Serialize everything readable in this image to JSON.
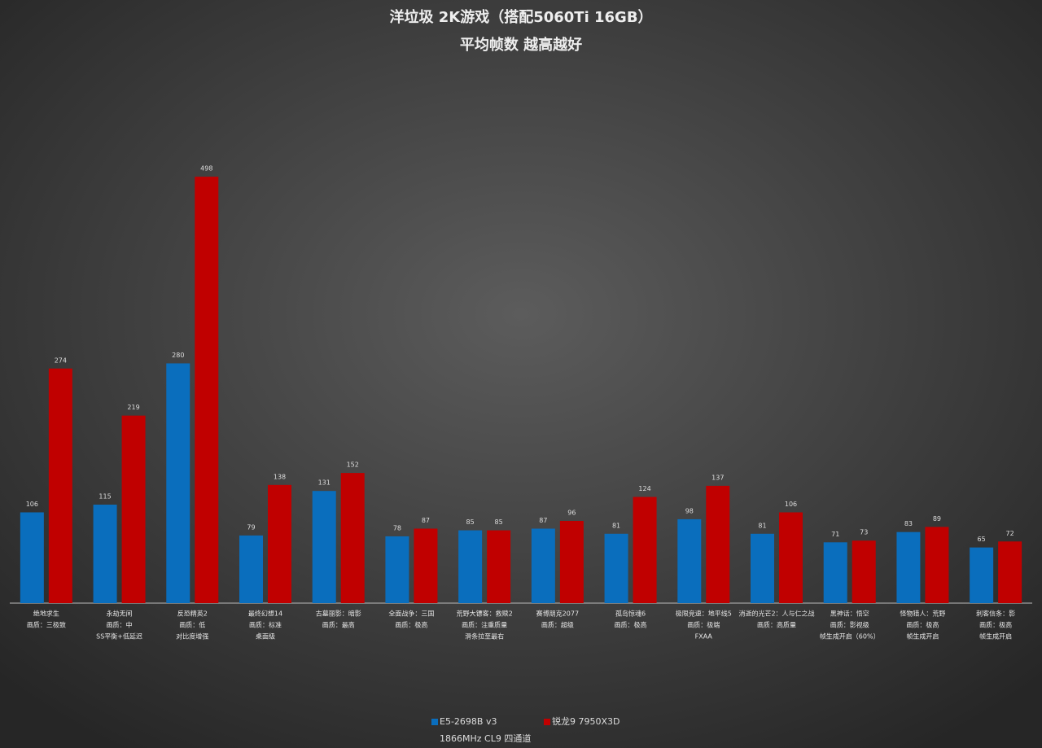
{
  "chart_data": {
    "type": "bar",
    "title": "洋垃圾 2K游戏（搭配5060Ti 16GB）",
    "subtitle": "平均帧数 越高越好",
    "categories": [
      [
        "绝地求生",
        "画质：三极致"
      ],
      [
        "永劫无间",
        "画质：中",
        "SS平衡+低延迟"
      ],
      [
        "反恐精英2",
        "画质：低",
        "对比度增强"
      ],
      [
        "最终幻想14",
        "画质：标准",
        "桌面级"
      ],
      [
        "古墓丽影：暗影",
        "画质：最高"
      ],
      [
        "全面战争：三国",
        "画质：极高"
      ],
      [
        "荒野大镖客：救赎2",
        "画质：注重质量",
        "滑条拉至最右"
      ],
      [
        "赛博朋克2077",
        "画质：超级"
      ],
      [
        "孤岛惊魂6",
        "画质：极高"
      ],
      [
        "极限竞速：地平线5",
        "画质：极端",
        "FXAA"
      ],
      [
        "消逝的光芒2：人与仁之战",
        "画质：高质量"
      ],
      [
        "黑神话：悟空",
        "画质：影视级",
        "帧生成开启（60%）"
      ],
      [
        "怪物猎人：荒野",
        "画质：极高",
        "帧生成开启"
      ],
      [
        "刺客信条：影",
        "画质：极高",
        "帧生成开启"
      ]
    ],
    "series": [
      {
        "name": "E5-2698B v3",
        "color": "#0a6ebd",
        "values": [
          106,
          115,
          280,
          79,
          131,
          78,
          85,
          87,
          81,
          98,
          81,
          71,
          83,
          65
        ]
      },
      {
        "name": "锐龙9 7950X3D",
        "color": "#c00000",
        "values": [
          274,
          219,
          498,
          138,
          152,
          87,
          85,
          96,
          124,
          137,
          106,
          73,
          89,
          72
        ]
      }
    ],
    "note": "1866MHz CL9 四通道",
    "legend": "bottom"
  }
}
